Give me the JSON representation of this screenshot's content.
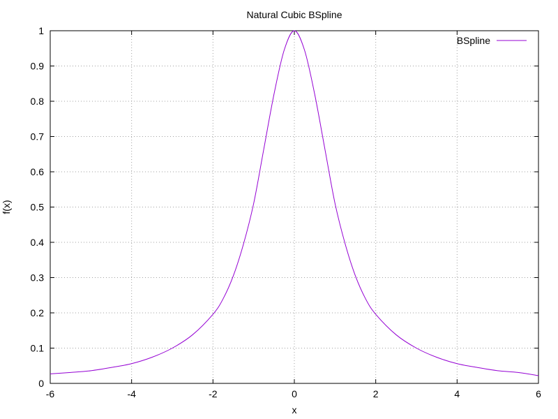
{
  "chart_data": {
    "type": "line",
    "title": "Natural Cubic BSpline",
    "xlabel": "x",
    "ylabel": "f(x)",
    "xlim": [
      -6,
      6
    ],
    "ylim": [
      0,
      1
    ],
    "x_ticks": [
      "-6",
      "-4",
      "-2",
      "0",
      "2",
      "4",
      "6"
    ],
    "y_ticks": [
      "0",
      "0.1",
      "0.2",
      "0.3",
      "0.4",
      "0.5",
      "0.6",
      "0.7",
      "0.8",
      "0.9",
      "1"
    ],
    "grid": true,
    "legend_position": "top-right",
    "series": [
      {
        "name": "BSpline",
        "color": "#9400d3",
        "points": [
          [
            -6.0,
            0.027
          ],
          [
            -5.5,
            0.031
          ],
          [
            -5.0,
            0.036
          ],
          [
            -4.5,
            0.045
          ],
          [
            -4.0,
            0.056
          ],
          [
            -3.5,
            0.074
          ],
          [
            -3.0,
            0.1
          ],
          [
            -2.5,
            0.138
          ],
          [
            -2.0,
            0.196
          ],
          [
            -1.75,
            0.24
          ],
          [
            -1.5,
            0.305
          ],
          [
            -1.25,
            0.395
          ],
          [
            -1.0,
            0.51
          ],
          [
            -0.75,
            0.665
          ],
          [
            -0.5,
            0.82
          ],
          [
            -0.25,
            0.945
          ],
          [
            0.0,
            1.0
          ],
          [
            0.25,
            0.945
          ],
          [
            0.5,
            0.82
          ],
          [
            0.75,
            0.665
          ],
          [
            1.0,
            0.51
          ],
          [
            1.25,
            0.395
          ],
          [
            1.5,
            0.305
          ],
          [
            1.75,
            0.24
          ],
          [
            2.0,
            0.196
          ],
          [
            2.5,
            0.138
          ],
          [
            3.0,
            0.1
          ],
          [
            3.5,
            0.074
          ],
          [
            4.0,
            0.056
          ],
          [
            4.5,
            0.045
          ],
          [
            5.0,
            0.036
          ],
          [
            5.5,
            0.031
          ],
          [
            6.0,
            0.022
          ]
        ]
      }
    ]
  }
}
